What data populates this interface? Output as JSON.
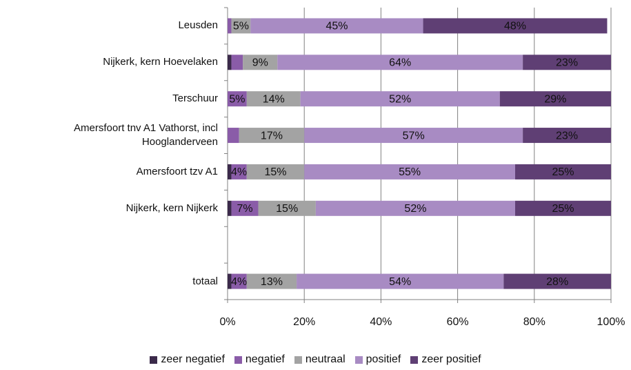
{
  "chart_data": {
    "type": "stacked_barh",
    "categories": [
      "Leusden",
      "Nijkerk, kern Hoevelaken",
      "Terschuur",
      "Amersfoort tnv A1 Vathorst, incl Hooglanderveen",
      "Amersfoort tzv A1",
      "Nijkerk, kern Nijkerk",
      null,
      "totaal"
    ],
    "series": [
      {
        "name": "zeer negatief",
        "color": "#3b2a4a",
        "values": [
          0,
          1,
          0,
          0,
          1,
          1,
          null,
          1
        ],
        "value_labels": [
          null,
          null,
          null,
          null,
          null,
          null,
          null,
          null
        ]
      },
      {
        "name": "negatief",
        "color": "#8a5ca8",
        "values": [
          1,
          3,
          5,
          3,
          4,
          7,
          null,
          4
        ],
        "value_labels": [
          null,
          null,
          "5%",
          null,
          "4%",
          "7%",
          null,
          "4%"
        ]
      },
      {
        "name": "neutraal",
        "color": "#a3a3a3",
        "values": [
          5,
          9,
          14,
          17,
          15,
          15,
          null,
          13
        ],
        "value_labels": [
          "5%",
          "9%",
          "14%",
          "17%",
          "15%",
          "15%",
          null,
          "13%"
        ]
      },
      {
        "name": "positief",
        "color": "#a88bc3",
        "values": [
          45,
          64,
          52,
          57,
          55,
          52,
          null,
          54
        ],
        "value_labels": [
          "45%",
          "64%",
          "52%",
          "57%",
          "55%",
          "52%",
          null,
          "54%"
        ]
      },
      {
        "name": "zeer positief",
        "color": "#5f3f74",
        "values": [
          48,
          23,
          29,
          23,
          25,
          25,
          null,
          28
        ],
        "value_labels": [
          "48%",
          "23%",
          "29%",
          "23%",
          "25%",
          "25%",
          null,
          "28%"
        ]
      }
    ],
    "xlim": [
      0,
      100
    ],
    "xticks": [
      {
        "value": 0,
        "label": "0%"
      },
      {
        "value": 20,
        "label": "20%"
      },
      {
        "value": 40,
        "label": "40%"
      },
      {
        "value": 60,
        "label": "60%"
      },
      {
        "value": 80,
        "label": "80%"
      },
      {
        "value": 100,
        "label": "100%"
      }
    ],
    "grid": true,
    "legend": "bottom"
  }
}
